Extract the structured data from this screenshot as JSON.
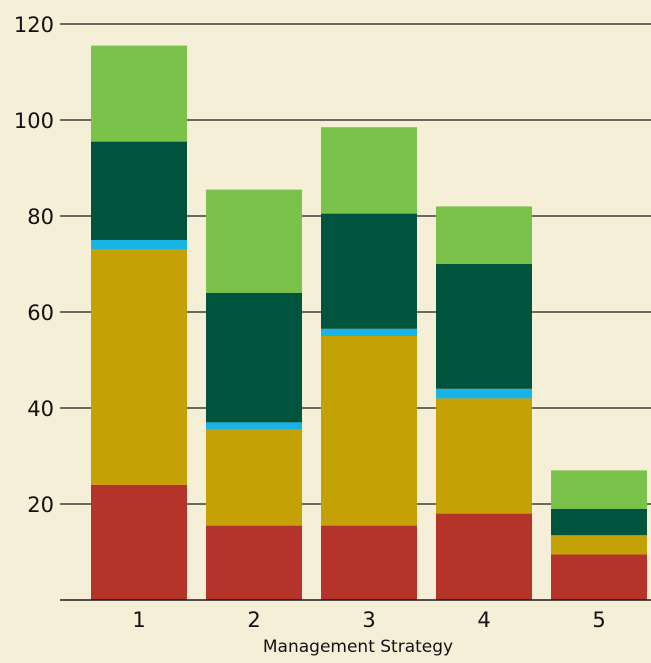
{
  "chart_data": {
    "type": "bar",
    "stacked": true,
    "categories": [
      "1",
      "2",
      "3",
      "4",
      "5"
    ],
    "xlabel": "Management Strategy",
    "ylabel": "",
    "title": "",
    "ylim": [
      0,
      120
    ],
    "yticks": [
      20,
      40,
      60,
      80,
      100,
      120
    ],
    "grid": "horizontal",
    "legend": "none",
    "series": [
      {
        "color": "#b5342a",
        "values": [
          24,
          15.5,
          15.5,
          18,
          9.5
        ]
      },
      {
        "color": "#c4a104",
        "values": [
          49,
          20,
          39.5,
          24,
          4
        ]
      },
      {
        "color": "#1ab3e6",
        "values": [
          2,
          1.5,
          1.5,
          2,
          0
        ]
      },
      {
        "color": "#00543e",
        "values": [
          20.5,
          27,
          24,
          26,
          5.5
        ]
      },
      {
        "color": "#7bc24a",
        "values": [
          20,
          21.5,
          18,
          12,
          8
        ]
      }
    ]
  }
}
